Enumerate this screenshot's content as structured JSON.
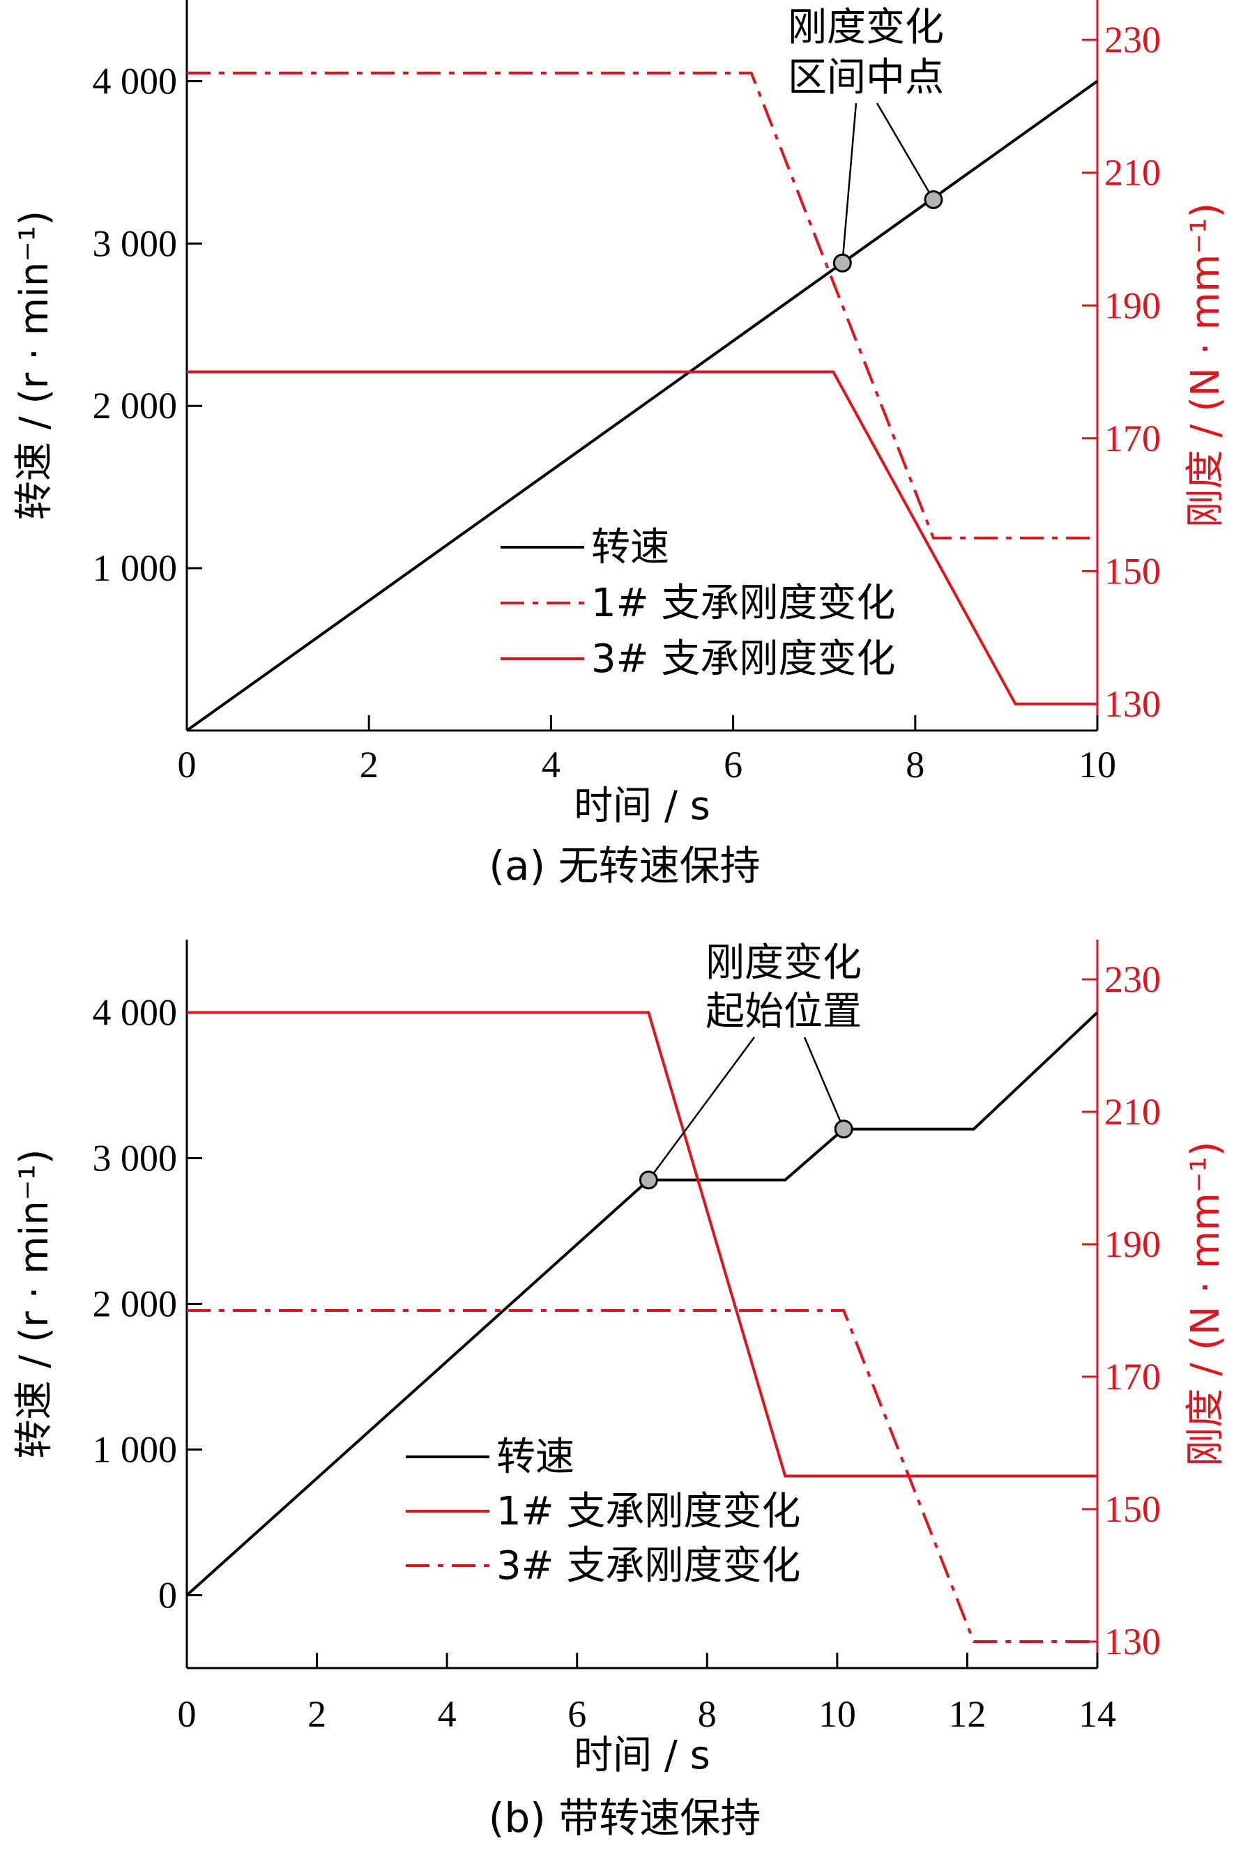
{
  "colors": {
    "speed": "#000000",
    "stiffness": "#e0141c",
    "axis_black": "#000000",
    "marker_fill": "#b4b4b4"
  },
  "chart_data": [
    {
      "type": "line",
      "caption": "(a)  无转速保持",
      "xlabel": "时间 / s",
      "ylabel_left": "转速 / (r · min⁻¹)",
      "ylabel_right": "刚度 / (N · mm⁻¹)",
      "xlim": [
        0,
        10
      ],
      "ylim_left": [
        0,
        4500
      ],
      "ylim_right": [
        126,
        236
      ],
      "xticks": [
        0,
        2,
        4,
        6,
        8,
        10
      ],
      "xtick_labels": [
        "0",
        "2",
        "4",
        "6",
        "8",
        "10"
      ],
      "yticks_left": [
        1000,
        2000,
        3000,
        4000
      ],
      "ytick_labels_left": [
        "1 000",
        "2 000",
        "3 000",
        "4 000"
      ],
      "yticks_right": [
        130,
        150,
        170,
        190,
        210,
        230
      ],
      "ytick_labels_right": [
        "130",
        "150",
        "170",
        "190",
        "210",
        "230"
      ],
      "legend_position": "bottom-center",
      "series": [
        {
          "name": "转速",
          "axis": "left",
          "style": "solid",
          "color": "#000000",
          "x": [
            0,
            10
          ],
          "y": [
            0,
            4000
          ]
        },
        {
          "name": "1# 支承刚度变化",
          "axis": "right",
          "style": "dashdot",
          "color": "#e0141c",
          "x": [
            0,
            6.2,
            8.2,
            10
          ],
          "y": [
            225,
            225,
            155,
            155
          ]
        },
        {
          "name": "3# 支承刚度变化",
          "axis": "right",
          "style": "solid",
          "color": "#e0141c",
          "x": [
            0,
            7.1,
            9.1,
            10
          ],
          "y": [
            180,
            180,
            130,
            130
          ]
        }
      ],
      "markers": [
        {
          "x": 7.2,
          "y": 2880
        },
        {
          "x": 8.2,
          "y": 3270
        }
      ],
      "annotation": {
        "lines": [
          "刚度变化",
          "区间中点"
        ]
      }
    },
    {
      "type": "line",
      "caption": "(b)  带转速保持",
      "xlabel": "时间 / s",
      "ylabel_left": "转速 / (r · min⁻¹)",
      "ylabel_right": "刚度 / (N · mm⁻¹)",
      "xlim": [
        0,
        14
      ],
      "ylim_left": [
        -500,
        4500
      ],
      "ylim_right": [
        126,
        236
      ],
      "xticks": [
        0,
        2,
        4,
        6,
        8,
        10,
        12,
        14
      ],
      "xtick_labels": [
        "0",
        "2",
        "4",
        "6",
        "8",
        "10",
        "12",
        "14"
      ],
      "yticks_left": [
        0,
        1000,
        2000,
        3000,
        4000
      ],
      "ytick_labels_left": [
        "0",
        "1 000",
        "2 000",
        "3 000",
        "4 000"
      ],
      "yticks_right": [
        130,
        150,
        170,
        190,
        210,
        230
      ],
      "ytick_labels_right": [
        "130",
        "150",
        "170",
        "190",
        "210",
        "230"
      ],
      "legend_position": "bottom-center",
      "series": [
        {
          "name": "转速",
          "axis": "left",
          "style": "solid",
          "color": "#000000",
          "x": [
            0,
            7.1,
            9.2,
            10.1,
            12.1,
            14
          ],
          "y": [
            0,
            2850,
            2850,
            3200,
            3200,
            4000
          ]
        },
        {
          "name": "1# 支承刚度变化",
          "axis": "right",
          "style": "solid",
          "color": "#e0141c",
          "x": [
            0,
            7.1,
            9.2,
            14
          ],
          "y": [
            225,
            225,
            155,
            155
          ]
        },
        {
          "name": "3# 支承刚度变化",
          "axis": "right",
          "style": "dashdot",
          "color": "#e0141c",
          "x": [
            0,
            10.1,
            12.1,
            14
          ],
          "y": [
            180,
            180,
            130,
            130
          ]
        }
      ],
      "markers": [
        {
          "x": 7.1,
          "y": 2850
        },
        {
          "x": 10.1,
          "y": 3200
        }
      ],
      "annotation": {
        "lines": [
          "刚度变化",
          "起始位置"
        ]
      }
    }
  ]
}
